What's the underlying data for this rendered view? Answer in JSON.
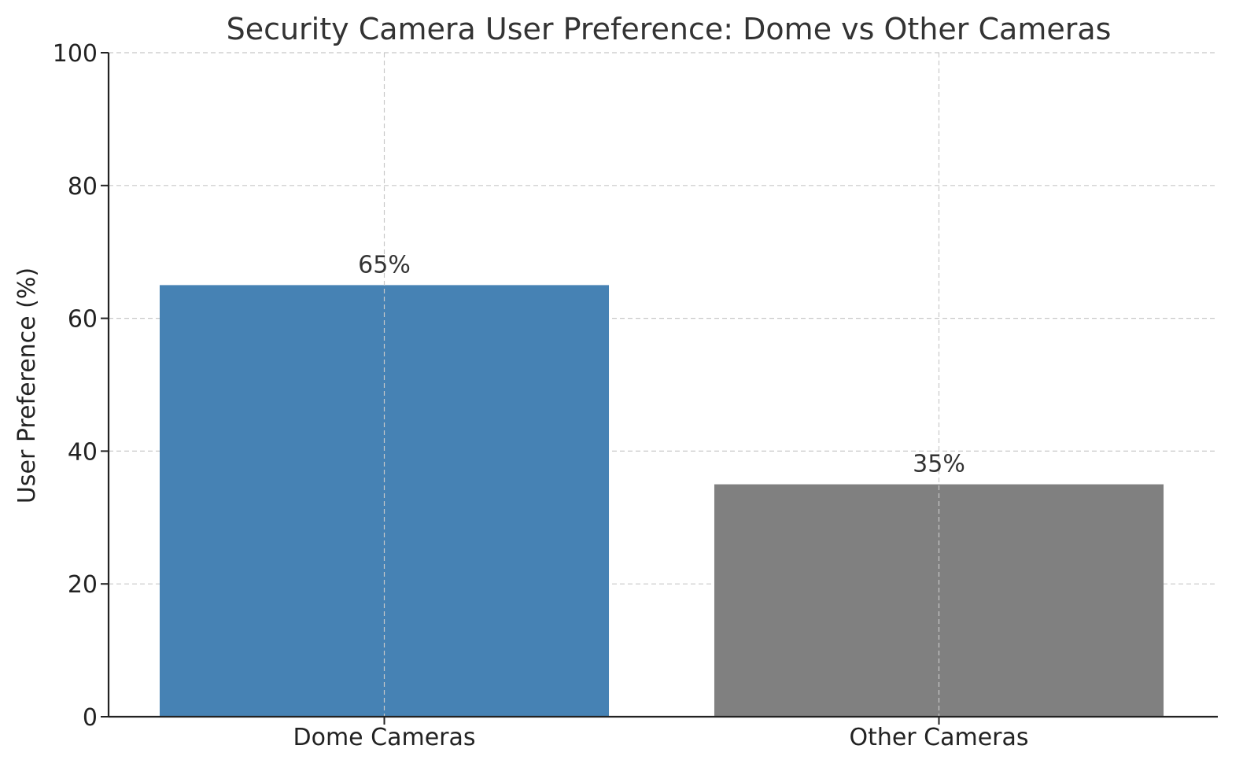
{
  "chart_data": {
    "type": "bar",
    "title": "Security Camera User Preference: Dome vs Other Cameras",
    "xlabel": "",
    "ylabel": "User Preference (%)",
    "categories": [
      "Dome Cameras",
      "Other Cameras"
    ],
    "values": [
      65,
      35
    ],
    "data_labels": [
      "65%",
      "35%"
    ],
    "colors": [
      "#4682b4",
      "#808080"
    ],
    "ylim": [
      0,
      100
    ],
    "yticks": [
      0,
      20,
      40,
      60,
      80,
      100
    ],
    "ytick_labels": [
      "0",
      "20",
      "40",
      "60",
      "80",
      "100"
    ],
    "grid": true,
    "legend": "none"
  }
}
